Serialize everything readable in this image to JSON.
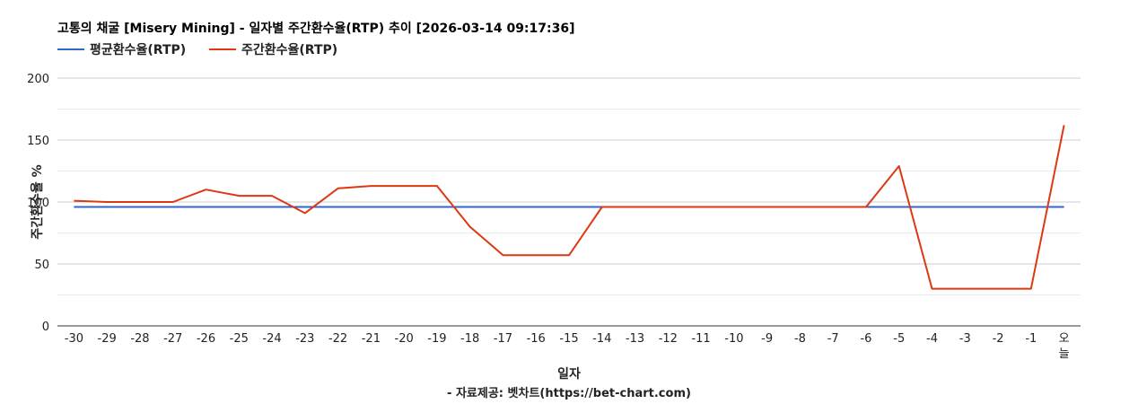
{
  "chart_data": {
    "type": "line",
    "title": "고통의 채굴 [Misery Mining] - 일자별 주간환수율(RTP) 추이 [2026-03-14 09:17:36]",
    "xlabel": "일자",
    "ylabel": "주간환수율 %",
    "source": "- 자료제공: 벳차트(https://bet-chart.com)",
    "categories": [
      "-30",
      "-29",
      "-28",
      "-27",
      "-26",
      "-25",
      "-24",
      "-23",
      "-22",
      "-21",
      "-20",
      "-19",
      "-18",
      "-17",
      "-16",
      "-15",
      "-14",
      "-13",
      "-12",
      "-11",
      "-10",
      "-9",
      "-8",
      "-7",
      "-6",
      "-5",
      "-4",
      "-3",
      "-2",
      "-1",
      "오늘"
    ],
    "ylim": [
      0,
      200
    ],
    "yticks": [
      0,
      50,
      100,
      150,
      200
    ],
    "grid": true,
    "legend_position": "top-left",
    "series": [
      {
        "name": "평균환수율(RTP)",
        "color": "#3366cc",
        "values": [
          96,
          96,
          96,
          96,
          96,
          96,
          96,
          96,
          96,
          96,
          96,
          96,
          96,
          96,
          96,
          96,
          96,
          96,
          96,
          96,
          96,
          96,
          96,
          96,
          96,
          96,
          96,
          96,
          96,
          96,
          96
        ]
      },
      {
        "name": "주간환수율(RTP)",
        "color": "#dc3912",
        "values": [
          101,
          100,
          100,
          100,
          110,
          105,
          105,
          91,
          111,
          113,
          113,
          113,
          80,
          57,
          57,
          57,
          96,
          96,
          96,
          96,
          96,
          96,
          96,
          96,
          96,
          129,
          30,
          30,
          30,
          30,
          162
        ]
      }
    ]
  }
}
